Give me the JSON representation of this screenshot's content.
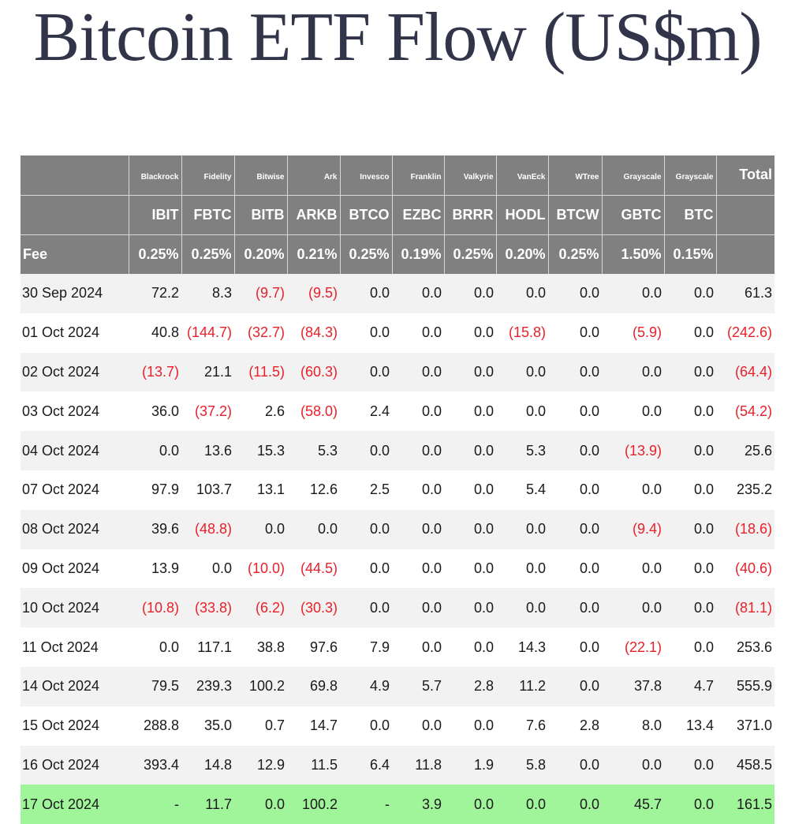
{
  "title": "Bitcoin ETF Flow (US$m)",
  "header": {
    "issuers": [
      "Blackrock",
      "Fidelity",
      "Bitwise",
      "Ark",
      "Invesco",
      "Franklin",
      "Valkyrie",
      "VanEck",
      "WTree",
      "Grayscale",
      "Grayscale"
    ],
    "total_label": "Total",
    "tickers": [
      "IBIT",
      "FBTC",
      "BITB",
      "ARKB",
      "BTCO",
      "EZBC",
      "BRRR",
      "HODL",
      "BTCW",
      "GBTC",
      "BTC"
    ],
    "fee_label": "Fee",
    "fees": [
      "0.25%",
      "0.25%",
      "0.20%",
      "0.21%",
      "0.25%",
      "0.19%",
      "0.25%",
      "0.20%",
      "0.25%",
      "1.50%",
      "0.15%"
    ]
  },
  "rows": [
    {
      "date": "30 Sep 2024",
      "values": [
        "72.2",
        "8.3",
        "(9.7)",
        "(9.5)",
        "0.0",
        "0.0",
        "0.0",
        "0.0",
        "0.0",
        "0.0",
        "0.0"
      ],
      "total": "61.3"
    },
    {
      "date": "01 Oct 2024",
      "values": [
        "40.8",
        "(144.7)",
        "(32.7)",
        "(84.3)",
        "0.0",
        "0.0",
        "0.0",
        "(15.8)",
        "0.0",
        "(5.9)",
        "0.0"
      ],
      "total": "(242.6)"
    },
    {
      "date": "02 Oct 2024",
      "values": [
        "(13.7)",
        "21.1",
        "(11.5)",
        "(60.3)",
        "0.0",
        "0.0",
        "0.0",
        "0.0",
        "0.0",
        "0.0",
        "0.0"
      ],
      "total": "(64.4)"
    },
    {
      "date": "03 Oct 2024",
      "values": [
        "36.0",
        "(37.2)",
        "2.6",
        "(58.0)",
        "2.4",
        "0.0",
        "0.0",
        "0.0",
        "0.0",
        "0.0",
        "0.0"
      ],
      "total": "(54.2)"
    },
    {
      "date": "04 Oct 2024",
      "values": [
        "0.0",
        "13.6",
        "15.3",
        "5.3",
        "0.0",
        "0.0",
        "0.0",
        "5.3",
        "0.0",
        "(13.9)",
        "0.0"
      ],
      "total": "25.6"
    },
    {
      "date": "07 Oct 2024",
      "values": [
        "97.9",
        "103.7",
        "13.1",
        "12.6",
        "2.5",
        "0.0",
        "0.0",
        "5.4",
        "0.0",
        "0.0",
        "0.0"
      ],
      "total": "235.2"
    },
    {
      "date": "08 Oct 2024",
      "values": [
        "39.6",
        "(48.8)",
        "0.0",
        "0.0",
        "0.0",
        "0.0",
        "0.0",
        "0.0",
        "0.0",
        "(9.4)",
        "0.0"
      ],
      "total": "(18.6)"
    },
    {
      "date": "09 Oct 2024",
      "values": [
        "13.9",
        "0.0",
        "(10.0)",
        "(44.5)",
        "0.0",
        "0.0",
        "0.0",
        "0.0",
        "0.0",
        "0.0",
        "0.0"
      ],
      "total": "(40.6)"
    },
    {
      "date": "10 Oct 2024",
      "values": [
        "(10.8)",
        "(33.8)",
        "(6.2)",
        "(30.3)",
        "0.0",
        "0.0",
        "0.0",
        "0.0",
        "0.0",
        "0.0",
        "0.0"
      ],
      "total": "(81.1)"
    },
    {
      "date": "11 Oct 2024",
      "values": [
        "0.0",
        "117.1",
        "38.8",
        "97.6",
        "7.9",
        "0.0",
        "0.0",
        "14.3",
        "0.0",
        "(22.1)",
        "0.0"
      ],
      "total": "253.6"
    },
    {
      "date": "14 Oct 2024",
      "values": [
        "79.5",
        "239.3",
        "100.2",
        "69.8",
        "4.9",
        "5.7",
        "2.8",
        "11.2",
        "0.0",
        "37.8",
        "4.7"
      ],
      "total": "555.9"
    },
    {
      "date": "15 Oct 2024",
      "values": [
        "288.8",
        "35.0",
        "0.7",
        "14.7",
        "0.0",
        "0.0",
        "0.0",
        "7.6",
        "2.8",
        "8.0",
        "13.4"
      ],
      "total": "371.0"
    },
    {
      "date": "16 Oct 2024",
      "values": [
        "393.4",
        "14.8",
        "12.9",
        "11.5",
        "6.4",
        "11.8",
        "1.9",
        "5.8",
        "0.0",
        "0.0",
        "0.0"
      ],
      "total": "458.5"
    },
    {
      "date": "17 Oct 2024",
      "values": [
        "-",
        "11.7",
        "0.0",
        "100.2",
        "-",
        "3.9",
        "0.0",
        "0.0",
        "0.0",
        "45.7",
        "0.0"
      ],
      "total": "161.5"
    }
  ],
  "colors": {
    "title": "#32344a",
    "header_bg": "#808080",
    "header_text": "#ffffff",
    "row_alt_bg": "#f2f2f2",
    "latest_row_bg": "#a0f59a",
    "negative_text": "#e8202a",
    "text": "#1a1a1a"
  }
}
